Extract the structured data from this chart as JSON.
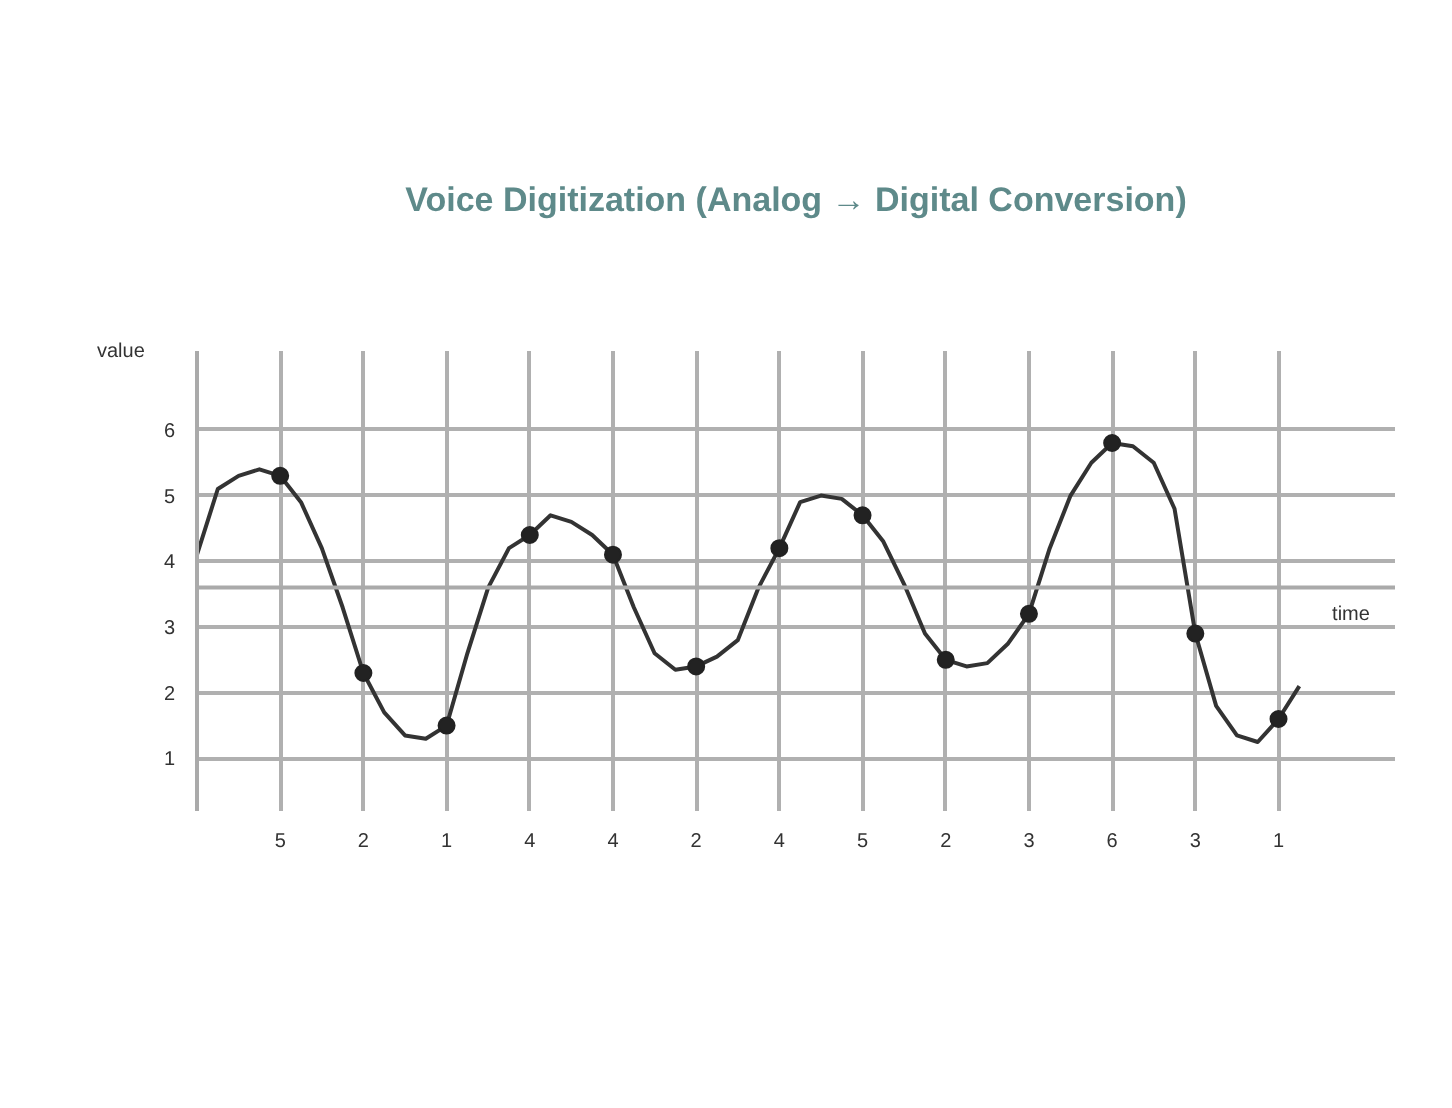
{
  "chart_data": {
    "type": "line",
    "title": "Voice Digitization (Analog → Digital Conversion)",
    "xlabel": "time",
    "ylabel": "value",
    "categories": [
      null,
      null,
      null,
      null,
      "5",
      null,
      null,
      null,
      "2",
      null,
      null,
      null,
      "1",
      null,
      null,
      null,
      "4",
      null,
      null,
      null,
      "4",
      null,
      null,
      null,
      "2",
      null,
      null,
      null,
      "4",
      null,
      null,
      null,
      "5",
      null,
      null,
      null,
      "2",
      null,
      null,
      null,
      "3",
      null,
      null,
      null,
      "6",
      null,
      null,
      null,
      "3",
      null,
      null,
      null,
      "1",
      null,
      null
    ],
    "series": [
      {
        "color": "#333333",
        "values": [
          4.1,
          5.1,
          5.3,
          5.4,
          5.3,
          4.9,
          4.2,
          3.3,
          2.3,
          1.7,
          1.35,
          1.3,
          1.5,
          2.6,
          3.6,
          4.2,
          4.4,
          4.7,
          4.6,
          4.4,
          4.1,
          3.3,
          2.6,
          2.35,
          2.4,
          2.55,
          2.8,
          3.6,
          4.2,
          4.9,
          5.0,
          4.95,
          4.7,
          4.3,
          3.65,
          2.9,
          2.5,
          2.4,
          2.45,
          2.75,
          3.2,
          4.2,
          5.0,
          5.5,
          5.8,
          5.75,
          5.5,
          4.8,
          2.9,
          1.8,
          1.35,
          1.25,
          1.6,
          2.1,
          null
        ]
      },
      {
        "type": "scatter",
        "color": "#222222",
        "marker": "circle",
        "values": [
          null,
          null,
          null,
          null,
          5.3,
          null,
          null,
          null,
          2.3,
          null,
          null,
          null,
          1.5,
          null,
          null,
          null,
          4.4,
          null,
          null,
          null,
          4.1,
          null,
          null,
          null,
          2.4,
          null,
          null,
          null,
          4.2,
          null,
          null,
          null,
          4.7,
          null,
          null,
          null,
          2.5,
          null,
          null,
          null,
          3.2,
          null,
          null,
          null,
          5.8,
          null,
          null,
          null,
          2.9,
          null,
          null,
          null,
          1.6,
          null,
          null
        ]
      }
    ],
    "ylim": [
      0.2,
      7.2
    ],
    "yticks": [
      1,
      2,
      3,
      4,
      5,
      6
    ],
    "ref_lines": [
      {
        "axis": "y",
        "value": 3.6,
        "color": "#aaaaaa"
      }
    ],
    "grid": true,
    "line_style": "solid"
  }
}
